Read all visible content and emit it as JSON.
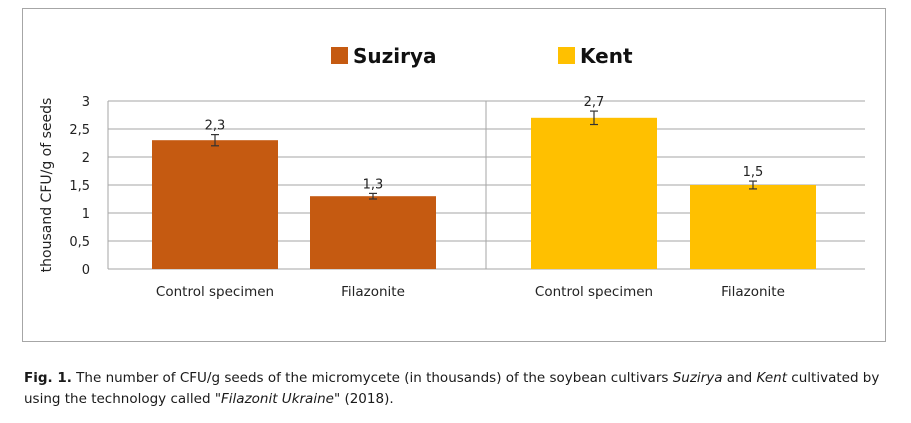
{
  "chart_data": {
    "type": "bar",
    "ylabel": "thousand CFU/g of seeds",
    "ylim": [
      0,
      3
    ],
    "yticks": [
      0,
      0.5,
      1,
      1.5,
      2,
      2.5,
      3
    ],
    "ytick_labels": [
      "0",
      "0,5",
      "1",
      "1,5",
      "2",
      "2,5",
      "3"
    ],
    "grid": true,
    "legend_position": "top",
    "legend": [
      {
        "name": "Suzirya",
        "color": "#C55A11"
      },
      {
        "name": "Kent",
        "color": "#FFC000"
      }
    ],
    "categories": [
      "Control specimen",
      "Filazonite",
      "Control specimen",
      "Filazonite"
    ],
    "bars": [
      {
        "series": "Suzirya",
        "category": "Control specimen",
        "value": 2.3,
        "label": "2,3",
        "error": 0.1,
        "color": "#C55A11"
      },
      {
        "series": "Suzirya",
        "category": "Filazonite",
        "value": 1.3,
        "label": "1,3",
        "error": 0.05,
        "color": "#C55A11"
      },
      {
        "series": "Kent",
        "category": "Control specimen",
        "value": 2.7,
        "label": "2,7",
        "error": 0.12,
        "color": "#FFC000"
      },
      {
        "series": "Kent",
        "category": "Filazonite",
        "value": 1.5,
        "label": "1,5",
        "error": 0.07,
        "color": "#FFC000"
      }
    ]
  },
  "caption": {
    "fig_label": "Fig. 1.",
    "text_1": " The number of CFU/g seeds of the micromycete (in thousands) of the soybean cultivars ",
    "cultivar_1": "Suzirya",
    "text_2": " and ",
    "cultivar_2": "Kent",
    "text_3": " cultivated by using the technology called \"",
    "technology": "Filazonit Ukraine",
    "text_4": "\" (2018)."
  }
}
